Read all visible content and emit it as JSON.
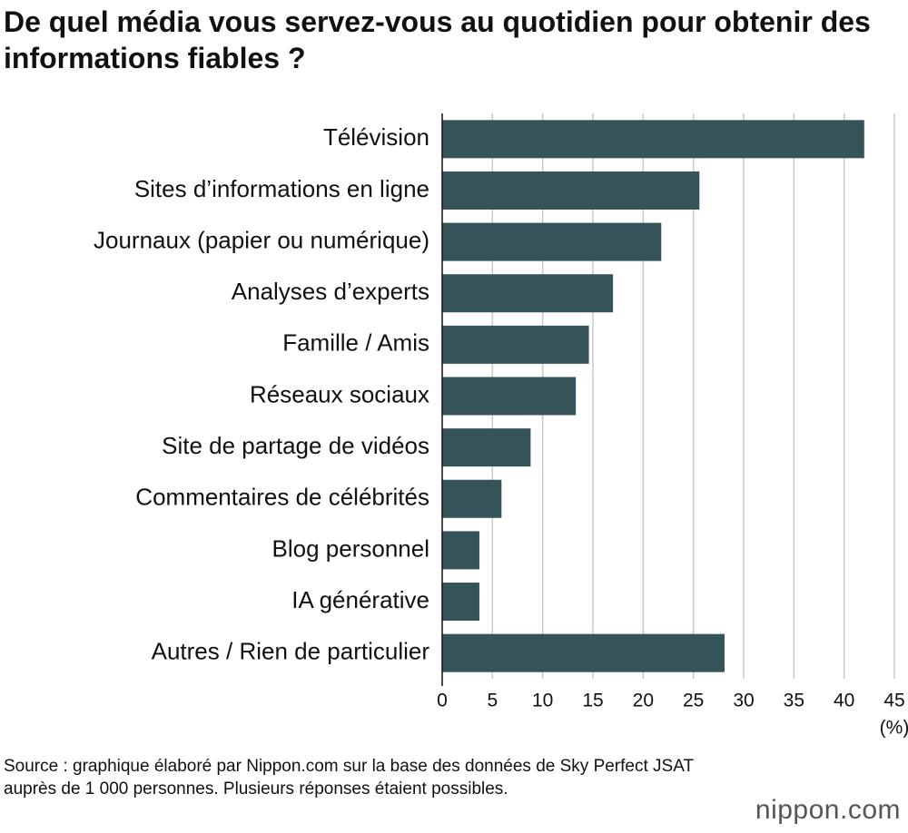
{
  "chart_data": {
    "type": "hbar",
    "title": "De quel média vous servez-vous au quotidien pour obtenir des informations fiables ?",
    "categories": [
      "Télévision",
      "Sites d’informations en ligne",
      "Journaux (papier ou numérique)",
      "Analyses d’experts",
      "Famille / Amis",
      "Réseaux sociaux",
      "Site de partage de vidéos",
      "Commentaires de célébrités",
      "Blog personnel",
      "IA générative",
      "Autres / Rien de particulier"
    ],
    "values": [
      42,
      25.6,
      21.8,
      17,
      14.6,
      13.3,
      8.8,
      5.9,
      3.7,
      3.7,
      28.1
    ],
    "color": "#37535a",
    "xlim": [
      0,
      45
    ],
    "xticks": [
      0,
      5,
      10,
      15,
      20,
      25,
      30,
      35,
      40,
      45
    ],
    "x_unit": "(%)",
    "grid": true,
    "source": "Source : graphique élaboré par Nippon.com sur la base des données de Sky Perfect JSAT auprès de 1 000 personnes. Plusieurs réponses étaient possibles.",
    "logo": "nippon.com"
  }
}
